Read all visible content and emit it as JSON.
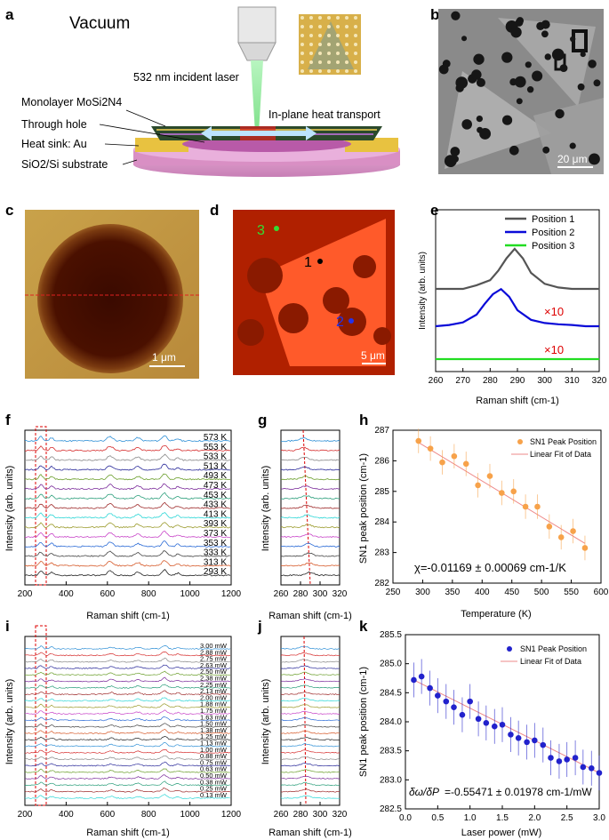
{
  "panel_letters": [
    "a",
    "b",
    "c",
    "d",
    "e",
    "f",
    "g",
    "h",
    "i",
    "j",
    "k"
  ],
  "panel_a": {
    "title": "Vacuum",
    "labels": [
      "532 nm incident laser",
      "Monolayer MoSi2N4",
      "In-plane heat transport",
      "Through hole",
      "Heat sink: Au",
      "SiO2/Si substrate"
    ]
  },
  "panel_b": {
    "scale_bar": "20 μm"
  },
  "panel_c": {
    "scale_bar": "1 μm"
  },
  "panel_d": {
    "scale_bar": "5 μm",
    "markers": [
      "1",
      "2",
      "3"
    ]
  },
  "colors": {
    "pos1": "#555555",
    "pos2": "#0a0ad8",
    "pos3": "#22dd22",
    "red": "#dd0000",
    "orange": "#f7a24a",
    "blue_pt": "#2222cc",
    "fit": "#ee8888"
  },
  "chart_data": [
    {
      "id": "e",
      "type": "line",
      "xlabel": "Raman shift (cm-1)",
      "ylabel": "Intensity (arb. units)",
      "xlim": [
        260,
        320
      ],
      "xticks": [
        "260",
        "270",
        "280",
        "290",
        "300",
        "310",
        "320"
      ],
      "legend": [
        "Position 1",
        "Position 2",
        "Position 3"
      ],
      "annotations": [
        "×10",
        "×10"
      ],
      "series": [
        {
          "name": "Position 1",
          "x": [
            260,
            270,
            275,
            280,
            283,
            286,
            289,
            292,
            295,
            300,
            305,
            310,
            320
          ],
          "y": [
            1.0,
            1.0,
            1.05,
            1.12,
            1.25,
            1.42,
            1.55,
            1.42,
            1.22,
            1.07,
            1.02,
            1.0,
            1.0
          ]
        },
        {
          "name": "Position 2",
          "x": [
            260,
            265,
            270,
            275,
            278,
            281,
            284,
            287,
            290,
            295,
            300,
            305,
            310,
            315,
            320
          ],
          "y": [
            0.4,
            0.42,
            0.46,
            0.58,
            0.75,
            0.9,
            0.98,
            0.86,
            0.65,
            0.5,
            0.45,
            0.43,
            0.42,
            0.4,
            0.4
          ]
        },
        {
          "name": "Position 3",
          "x": [
            260,
            320
          ],
          "y": [
            0.02,
            0.02
          ]
        }
      ]
    },
    {
      "id": "f",
      "type": "line",
      "xlabel": "Raman shift (cm-1)",
      "ylabel": "Intensity (arb. units)",
      "xlim": [
        200,
        1200
      ],
      "xticks": [
        "200",
        "400",
        "600",
        "800",
        "1000",
        "1200"
      ],
      "traces": [
        "573 K",
        "553 K",
        "533 K",
        "513 K",
        "493 K",
        "473 K",
        "453 K",
        "433 K",
        "413 K",
        "393 K",
        "373 K",
        "353 K",
        "333 K",
        "313 K",
        "293 K"
      ]
    },
    {
      "id": "g",
      "type": "line",
      "xlabel": "Raman shift (cm-1)",
      "ylabel": "Intensity (arb. units)",
      "xlim": [
        260,
        320
      ],
      "xticks": [
        "260",
        "280",
        "300",
        "320"
      ]
    },
    {
      "id": "h",
      "type": "scatter",
      "xlabel": "Temperature (K)",
      "ylabel": "SN1 peak position (cm-1)",
      "xlim": [
        250,
        600
      ],
      "ylim": [
        282,
        287
      ],
      "xticks": [
        "250",
        "300",
        "350",
        "400",
        "450",
        "500",
        "550",
        "600"
      ],
      "yticks": [
        "282",
        "283",
        "284",
        "285",
        "286",
        "287"
      ],
      "legend": [
        "SN1 Peak Position",
        "Linear Fit of Data"
      ],
      "annotation": "χ=-0.01169 ± 0.00069 cm-1/K",
      "x": [
        293,
        313,
        333,
        353,
        373,
        393,
        413,
        433,
        453,
        473,
        493,
        513,
        533,
        553,
        573
      ],
      "y": [
        286.65,
        286.4,
        285.95,
        286.15,
        285.9,
        285.2,
        285.5,
        284.95,
        285.0,
        284.5,
        284.5,
        283.85,
        283.5,
        283.7,
        283.15
      ],
      "err": 0.4,
      "fit": {
        "x": [
          293,
          573
        ],
        "y": [
          286.6,
          283.3
        ]
      }
    },
    {
      "id": "i",
      "type": "line",
      "xlabel": "Raman shift (cm-1)",
      "ylabel": "Intensity (arb. units)",
      "xlim": [
        200,
        1200
      ],
      "xticks": [
        "200",
        "400",
        "600",
        "800",
        "1000",
        "1200"
      ],
      "traces": [
        "3.00 mW",
        "2.88 mW",
        "2.75 mW",
        "2.63 mW",
        "2.50 mW",
        "2.38 mW",
        "2.25 mW",
        "2.13 mW",
        "2.00 mW",
        "1.88 mW",
        "1.75 mW",
        "1.63 mW",
        "1.50 mW",
        "1.38 mW",
        "1.25 mW",
        "1.13 mW",
        "1.00 mW",
        "0.88 mW",
        "0.75 mW",
        "0.63 mW",
        "0.50 mW",
        "0.38 mW",
        "0.25 mW",
        "0.13 mW"
      ]
    },
    {
      "id": "j",
      "type": "line",
      "xlabel": "Raman shift (cm-1)",
      "ylabel": "Intensity (arb. units)",
      "xlim": [
        260,
        320
      ],
      "xticks": [
        "260",
        "280",
        "300",
        "320"
      ]
    },
    {
      "id": "k",
      "type": "scatter",
      "xlabel": "Laser power (mW)",
      "ylabel": "SN1 peak position (cm-1)",
      "xlim": [
        0,
        3.0
      ],
      "ylim": [
        282.5,
        285.5
      ],
      "xticks": [
        "0.0",
        "0.5",
        "1.0",
        "1.5",
        "2.0",
        "2.5",
        "3.0"
      ],
      "yticks": [
        "282.5",
        "283.0",
        "283.5",
        "284.0",
        "284.5",
        "285.0",
        "285.5"
      ],
      "legend": [
        "SN1 Peak Position",
        "Linear Fit of  Data"
      ],
      "annotation_lhs": "δω/δP",
      "annotation": "=-0.55471 ± 0.01978 cm-1/mW",
      "x": [
        0.13,
        0.25,
        0.38,
        0.5,
        0.63,
        0.75,
        0.88,
        1.0,
        1.13,
        1.25,
        1.38,
        1.5,
        1.63,
        1.75,
        1.88,
        2.0,
        2.13,
        2.25,
        2.38,
        2.5,
        2.63,
        2.75,
        2.88,
        3.0
      ],
      "y": [
        284.72,
        284.78,
        284.58,
        284.45,
        284.35,
        284.25,
        284.12,
        284.35,
        284.05,
        283.98,
        283.92,
        283.95,
        283.78,
        283.72,
        283.65,
        283.68,
        283.6,
        283.38,
        283.32,
        283.35,
        283.38,
        283.22,
        283.2,
        283.12
      ],
      "err": 0.3,
      "fit": {
        "x": [
          0.13,
          3.0
        ],
        "y": [
          284.72,
          283.12
        ]
      }
    }
  ]
}
